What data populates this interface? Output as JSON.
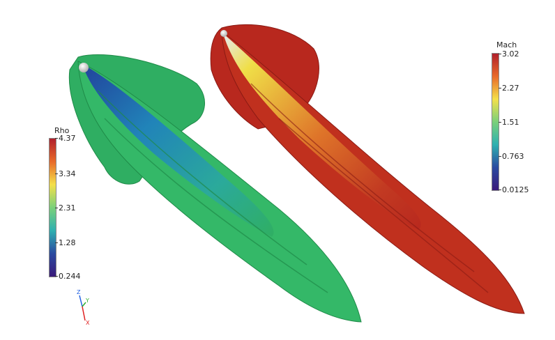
{
  "colorbars": {
    "rho": {
      "title": "Rho",
      "ticks": [
        "4.37",
        "3.34",
        "2.31",
        "1.28",
        "0.244"
      ],
      "gradient": [
        "#b0202c",
        "#e86a2a",
        "#f4e04a",
        "#7ad07a",
        "#2fb0b0",
        "#2a4aa0",
        "#3a1a7a"
      ]
    },
    "mach": {
      "title": "Mach",
      "ticks": [
        "3.02",
        "2.27",
        "1.51",
        "0.763",
        "0.0125"
      ],
      "gradient": [
        "#b0202c",
        "#e86a2a",
        "#f4e04a",
        "#7ad07a",
        "#2fb0b0",
        "#2a4aa0",
        "#3a1a7a"
      ]
    }
  },
  "axes_triad": {
    "labels": [
      "Z",
      "Y",
      "X"
    ],
    "colors": [
      "#2060e0",
      "#30b030",
      "#e02020"
    ]
  },
  "plume_colors": {
    "rho_body": "#2fae62",
    "rho_core": "#1e6ab0",
    "mach_body": "#b8281e",
    "mach_core": "#f2e84a",
    "sphere": "#e8e8e8"
  }
}
